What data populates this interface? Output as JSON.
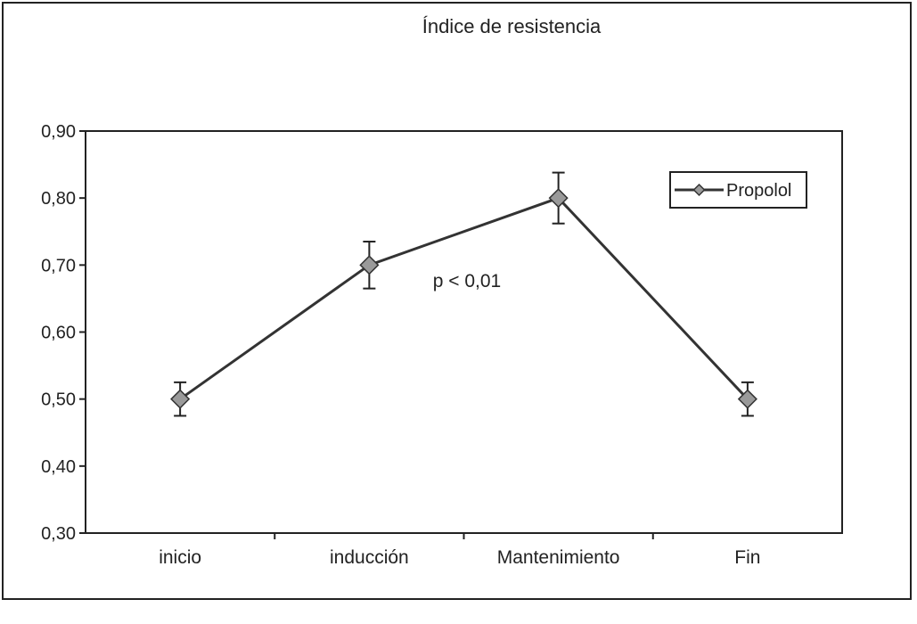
{
  "chart_data": {
    "type": "line",
    "title": "Índice de resistencia",
    "xlabel": "",
    "ylabel": "",
    "categories": [
      "inicio",
      "inducción",
      "Mantenimiento",
      "Fin"
    ],
    "series": [
      {
        "name": "Propolol",
        "values": [
          0.5,
          0.7,
          0.8,
          0.5
        ],
        "error": [
          0.025,
          0.035,
          0.038,
          0.025
        ]
      }
    ],
    "ylim": [
      0.3,
      0.9
    ],
    "yticks": [
      "0,30",
      "0,40",
      "0,50",
      "0,60",
      "0,70",
      "0,80",
      "0,90"
    ],
    "ytick_values": [
      0.3,
      0.4,
      0.5,
      0.6,
      0.7,
      0.8,
      0.9
    ],
    "annotation": "p < 0,01",
    "legend_position": "top-right",
    "grid": false,
    "colors": {
      "line": "#333333",
      "marker_fill": "#9a9a9a",
      "marker_stroke": "#333333"
    }
  }
}
